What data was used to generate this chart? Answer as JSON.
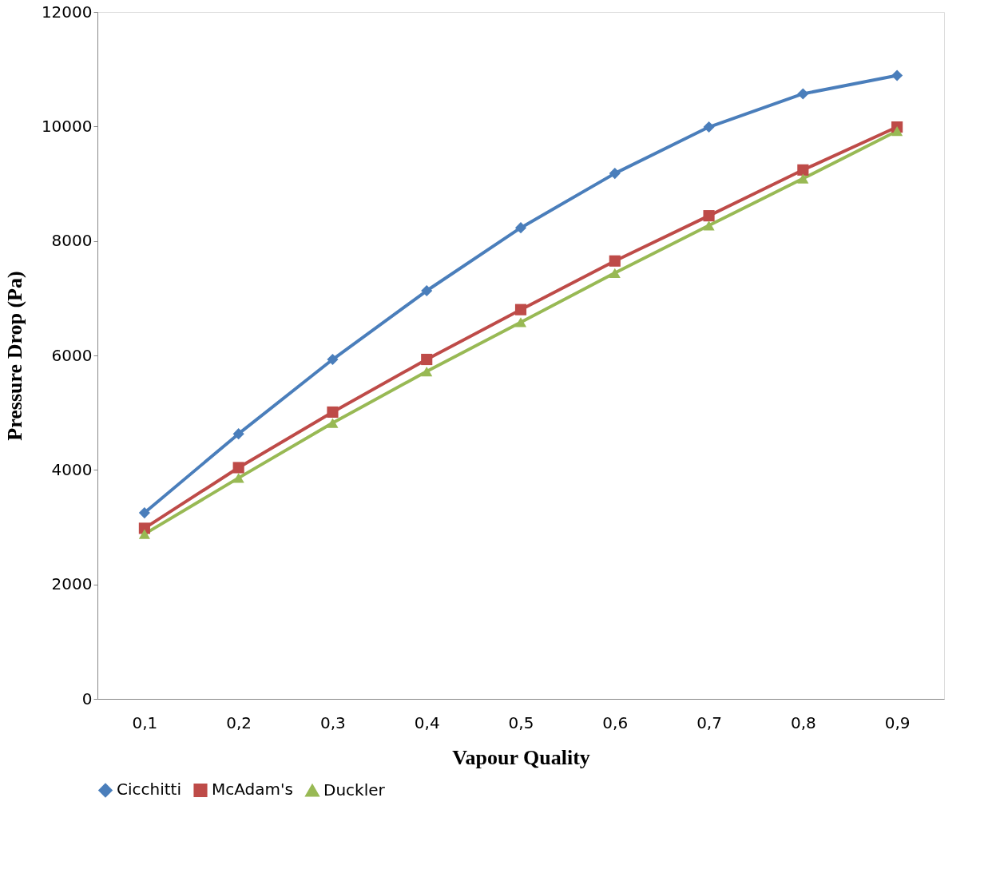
{
  "chart_data": {
    "type": "line",
    "xlabel": "Vapour Quality",
    "ylabel": "Pressure Drop (Pa)",
    "categories": [
      "0,1",
      "0,2",
      "0,3",
      "0,4",
      "0,5",
      "0,6",
      "0,7",
      "0,8",
      "0,9"
    ],
    "series": [
      {
        "name": "Cicchitti",
        "color": "#4a7ebb",
        "marker": "diamond",
        "values": [
          3250,
          4630,
          5930,
          7130,
          8230,
          9180,
          9990,
          10570,
          10890
        ]
      },
      {
        "name": "McAdam's",
        "color": "#be4b48",
        "marker": "square",
        "values": [
          2980,
          4040,
          5010,
          5930,
          6800,
          7650,
          8440,
          9240,
          9990
        ]
      },
      {
        "name": "Duckler",
        "color": "#98b954",
        "marker": "triangle",
        "values": [
          2880,
          3860,
          4820,
          5720,
          6580,
          7440,
          8270,
          9090,
          9920
        ]
      }
    ],
    "ylim": [
      0,
      12000
    ],
    "yticks": [
      0,
      2000,
      4000,
      6000,
      8000,
      10000,
      12000
    ],
    "grid": false,
    "legend": "bottom",
    "line_style": "solid"
  }
}
